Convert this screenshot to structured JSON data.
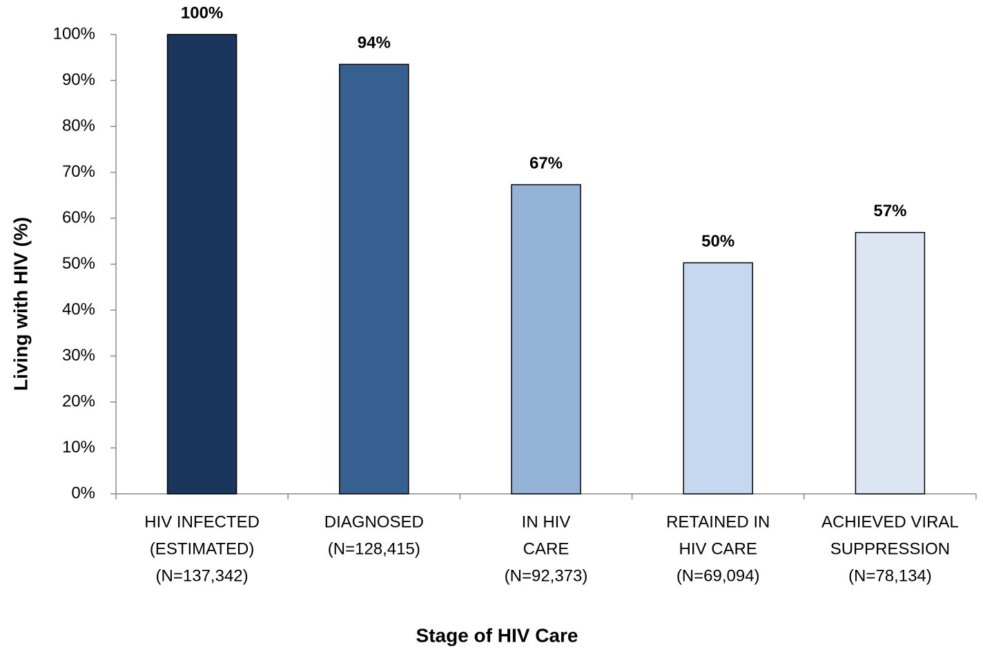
{
  "chart_data": {
    "type": "bar",
    "x_label": "Stage of HIV Care",
    "y_label": "Living with HIV (%)",
    "categories": [
      [
        "HIV INFECTED",
        "(ESTIMATED)",
        "(N=137,342)"
      ],
      [
        "DIAGNOSED",
        "(N=128,415)"
      ],
      [
        "IN HIV",
        "CARE",
        "(N=92,373)"
      ],
      [
        "RETAINED IN",
        "HIV CARE",
        "(N=69,094)"
      ],
      [
        "ACHIEVED VIRAL",
        "SUPPRESSION",
        "(N=78,134)"
      ]
    ],
    "values": [
      100,
      93.5,
      67.3,
      50.3,
      56.9
    ],
    "value_labels": [
      "100%",
      "94%",
      "67%",
      "50%",
      "57%"
    ],
    "colors": [
      "#1b365d",
      "#36608f",
      "#95b3d7",
      "#c6d8f0",
      "#dce6f2"
    ],
    "ylim": [
      0,
      100
    ],
    "yticks": [
      {
        "value": 0,
        "label": "0%"
      },
      {
        "value": 10,
        "label": "10%"
      },
      {
        "value": 20,
        "label": "20%"
      },
      {
        "value": 30,
        "label": "30%"
      },
      {
        "value": 40,
        "label": "40%"
      },
      {
        "value": 50,
        "label": "50%"
      },
      {
        "value": 60,
        "label": "60%"
      },
      {
        "value": 70,
        "label": "70%"
      },
      {
        "value": 80,
        "label": "80%"
      },
      {
        "value": 90,
        "label": "90%"
      },
      {
        "value": 100,
        "label": "100%"
      }
    ],
    "grid": false
  }
}
